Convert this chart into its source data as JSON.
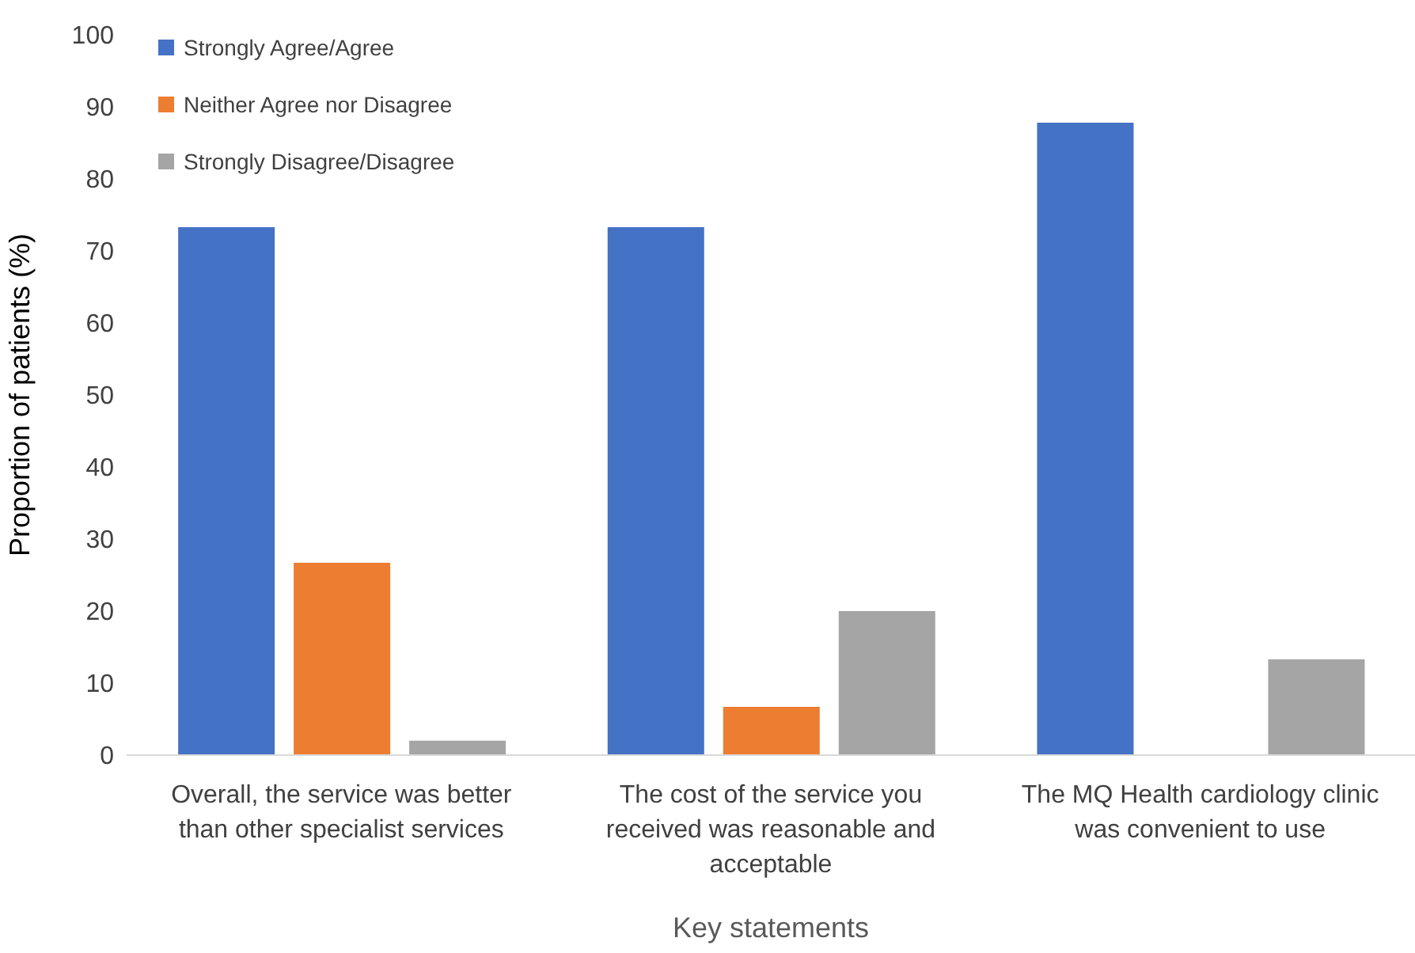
{
  "chart_data": {
    "type": "bar",
    "xlabel": "Key statements",
    "ylabel": "Proportion of patients (%)",
    "categories": [
      "Overall, the service was better than other specialist services",
      "The cost of the service you received was reasonable and acceptable",
      "The MQ Health cardiology clinic was convenient to use"
    ],
    "series": [
      {
        "name": "Strongly Agree/Agree",
        "color": "#4472c4",
        "values": [
          73.3,
          73.3,
          87.8
        ]
      },
      {
        "name": "Neither Agree nor Disagree",
        "color": "#ed7d31",
        "values": [
          26.7,
          6.7,
          0
        ]
      },
      {
        "name": "Strongly Disagree/Disagree",
        "color": "#a5a5a5",
        "values": [
          2,
          20,
          13.3
        ]
      }
    ],
    "ylim": [
      0,
      100
    ],
    "yticks": [
      0,
      10,
      20,
      30,
      40,
      50,
      60,
      70,
      80,
      90,
      100
    ],
    "grid": false,
    "legend": "top left"
  }
}
